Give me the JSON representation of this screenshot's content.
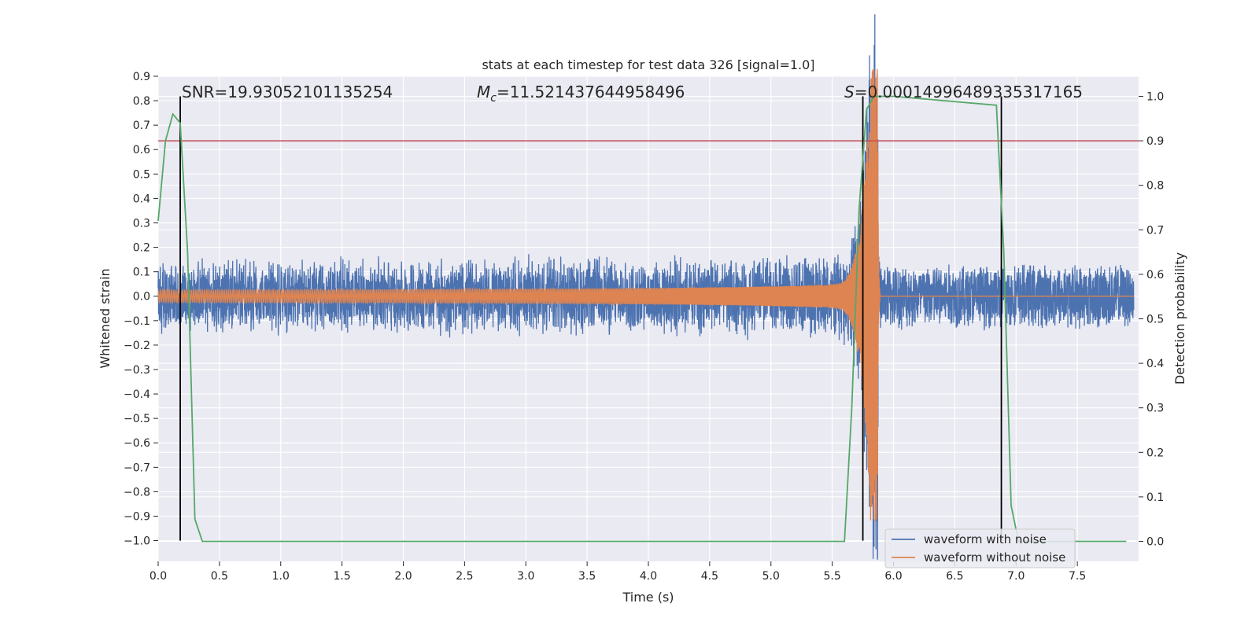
{
  "chart_data": {
    "type": "line",
    "title": "stats at each timestep for test data 326 [signal=1.0]",
    "xlabel": "Time (s)",
    "ylabel": "Whitened strain",
    "y2label": "Detection probability",
    "xlim": [
      0.0,
      8.0
    ],
    "ylim": [
      -1.085,
      0.9
    ],
    "y2lim": [
      -0.045,
      1.045
    ],
    "xticks": [
      "0.0",
      "0.5",
      "1.0",
      "1.5",
      "2.0",
      "2.5",
      "3.0",
      "3.5",
      "4.0",
      "4.5",
      "5.0",
      "5.5",
      "6.0",
      "6.5",
      "7.0",
      "7.5"
    ],
    "yticks": [
      "0.9",
      "0.8",
      "0.7",
      "0.6",
      "0.5",
      "0.4",
      "0.3",
      "0.2",
      "0.1",
      "0.0",
      "−0.1",
      "−0.2",
      "−0.3",
      "−0.4",
      "−0.5",
      "−0.6",
      "−0.7",
      "−0.8",
      "−0.9",
      "−1.0"
    ],
    "y2ticks": [
      "0.0",
      "0.1",
      "0.2",
      "0.3",
      "0.4",
      "0.5",
      "0.6",
      "0.7",
      "0.8",
      "0.9",
      "1.0"
    ],
    "grid": true,
    "legend_position": "lower-right",
    "annotations": {
      "snr": "SNR=19.93052101135254",
      "mc_symbol": "M",
      "mc_sub": "c",
      "mc_value": "=11.521437644958496",
      "s_symbol": "S",
      "s_value": "=0.00014996489335317165"
    },
    "series": [
      {
        "name": "waveform with noise",
        "color": "#4c72b0",
        "axis": "left",
        "noise_amplitude": 0.14,
        "merger_time": 5.87
      },
      {
        "name": "waveform without noise",
        "color": "#dd8452",
        "axis": "left",
        "initial_amplitude": 0.025,
        "peak_amplitude": 0.93,
        "merger_time": 5.87
      },
      {
        "name": "Detection probability",
        "color": "#55a868",
        "axis": "right",
        "x": [
          0.0,
          0.06,
          0.12,
          0.18,
          0.24,
          0.3,
          0.36,
          0.42,
          5.6,
          5.66,
          5.72,
          5.78,
          5.84,
          5.9,
          6.0,
          6.84,
          6.9,
          6.96,
          7.02,
          7.08,
          7.9
        ],
        "y": [
          0.72,
          0.9,
          0.96,
          0.94,
          0.65,
          0.05,
          0.0,
          0.0,
          0.0,
          0.3,
          0.75,
          0.97,
          1.0,
          1.0,
          1.0,
          0.98,
          0.65,
          0.08,
          0.0,
          0.0,
          0.0
        ]
      }
    ],
    "hlines": [
      {
        "axis": "right",
        "y": 0.9,
        "color": "#c44e52"
      }
    ],
    "vlines": [
      {
        "x": 0.18,
        "y2_top": 1.0
      },
      {
        "x": 5.75,
        "y2_top": 1.0
      },
      {
        "x": 6.88,
        "y2_top": 1.0
      }
    ]
  }
}
